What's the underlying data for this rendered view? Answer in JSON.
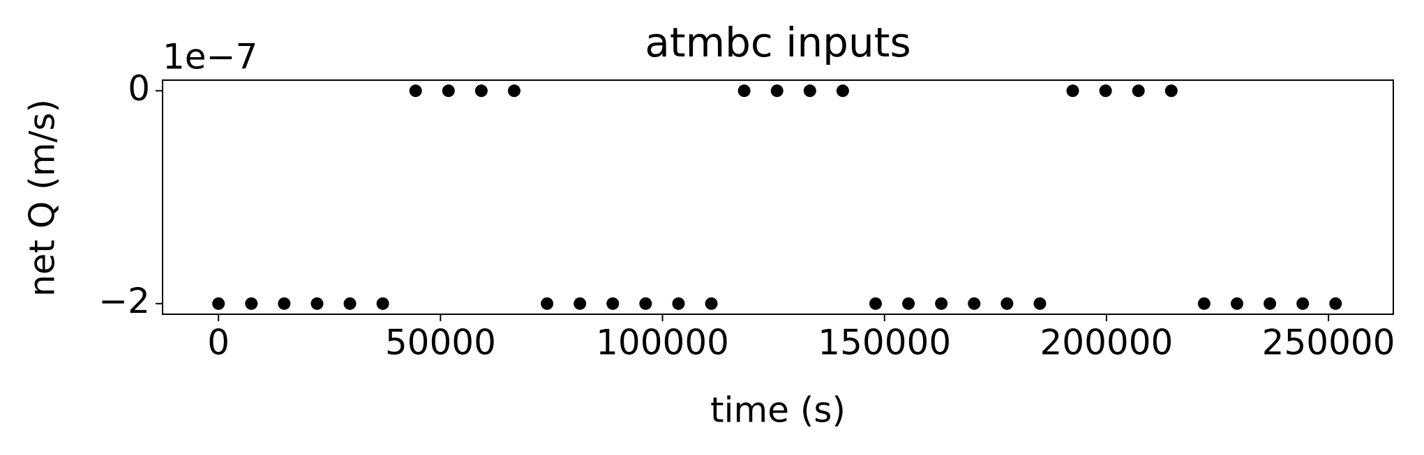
{
  "chart_data": {
    "type": "scatter",
    "title": "atmbc inputs",
    "xlabel": "time (s)",
    "ylabel": "net Q (m/s)",
    "y_offset_label": "1e−7",
    "x": [
      0,
      7400,
      14800,
      22200,
      29600,
      37000,
      44400,
      51800,
      59200,
      66600,
      74000,
      81400,
      88800,
      96200,
      103600,
      111000,
      118400,
      125800,
      133200,
      140600,
      148000,
      155400,
      162800,
      170200,
      177600,
      185000,
      192400,
      199800,
      207200,
      214600,
      222000,
      229400,
      236800,
      244200,
      251600
    ],
    "values": [
      -2e-07,
      -2e-07,
      -2e-07,
      -2e-07,
      -2e-07,
      -2e-07,
      0,
      0,
      0,
      0,
      -2e-07,
      -2e-07,
      -2e-07,
      -2e-07,
      -2e-07,
      -2e-07,
      0,
      0,
      0,
      0,
      -2e-07,
      -2e-07,
      -2e-07,
      -2e-07,
      -2e-07,
      -2e-07,
      0,
      0,
      0,
      0,
      -2e-07,
      -2e-07,
      -2e-07,
      -2e-07,
      -2e-07
    ],
    "color": "#000000",
    "xlim": [
      -12600,
      264600
    ],
    "xticks": [
      0,
      50000,
      100000,
      150000,
      200000,
      250000
    ],
    "ylim": [
      -2.1e-07,
      1e-08
    ],
    "yticks": [
      {
        "value": -2e-07,
        "label": "−2"
      },
      0
    ],
    "grid": false
  }
}
